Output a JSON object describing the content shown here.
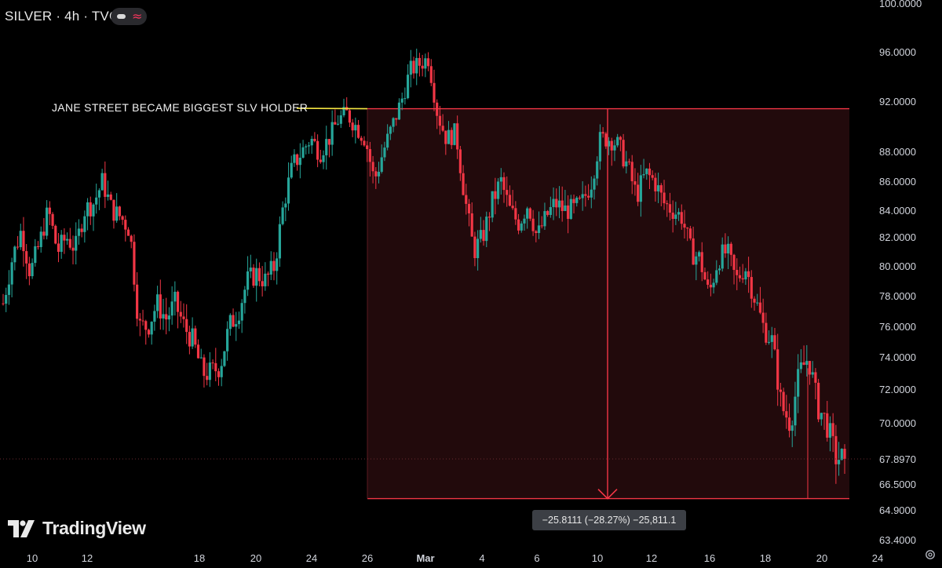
{
  "header": {
    "title": "SILVER · 4h · TVC"
  },
  "annotation": "JANE STREET BECAME BIGGEST SLV HOLDER",
  "logo": {
    "text": "TradingView"
  },
  "measure": {
    "label": "−25.8111 (−28.27%) −25,811.1"
  },
  "colors": {
    "up": "#26a69a",
    "down": "#f23645",
    "zone_fill": "#220a0c",
    "zone_line": "#f23645",
    "annotation_line": "#f5e642",
    "axis_text": "#d1d4dc"
  },
  "chart_data": {
    "type": "candlestick",
    "symbol": "SILVER",
    "interval": "4h",
    "source": "TVC",
    "x_ticks": [
      "10",
      "12",
      "18",
      "20",
      "24",
      "26",
      "Mar",
      "4",
      "6",
      "10",
      "12",
      "16",
      "18",
      "20",
      "24"
    ],
    "y_ticks": [
      "100.0000",
      "96.0000",
      "92.0000",
      "88.0000",
      "86.0000",
      "84.0000",
      "82.0000",
      "80.0000",
      "78.0000",
      "76.0000",
      "74.0000",
      "72.0000",
      "70.0000",
      "67.8970",
      "66.5000",
      "64.9000",
      "63.4000"
    ],
    "current_price": 67.897,
    "measure_zone": {
      "start_price": 91.4,
      "end_price": 65.6,
      "change": -25.8111,
      "change_pct": -28.27
    },
    "ohlc_anchors": [
      [
        77.5,
        80.5,
        82.5,
        79.5,
        81.5,
        84.0,
        81.0,
        82.0,
        81.2,
        84.0,
        84.5,
        86.0,
        84.0,
        83.5,
        82.5
      ],
      [
        76.0,
        76.0,
        77.5,
        76.5,
        77.5,
        76.0,
        75.0,
        73.0,
        73.0,
        73.5,
        76.0,
        77.0,
        79.0,
        79.5,
        79.0
      ],
      [
        80.0,
        84.5,
        87.0,
        88.0,
        89.0,
        88.0,
        89.0,
        90.5,
        91.0,
        90.0,
        89.0,
        86.0,
        88.0,
        90.0,
        92.0
      ],
      [
        94.5,
        95.0,
        95.5,
        91.0,
        89.0,
        89.5,
        85.0,
        81.0,
        82.0,
        84.5,
        86.0,
        84.0,
        83.0,
        84.5,
        82.0
      ],
      [
        83.5,
        84.5,
        84.0,
        84.0,
        84.5,
        86.0,
        89.0,
        89.0,
        88.5,
        87.0,
        85.0,
        86.5,
        86.0,
        84.5,
        84.0
      ],
      [
        83.5,
        81.0,
        80.5,
        78.0,
        80.5,
        81.0,
        79.0,
        80.0,
        78.0,
        76.0,
        75.0,
        71.0,
        70.0,
        73.0,
        74.0
      ],
      [
        71.0,
        70.0,
        68.0,
        67.897
      ]
    ]
  }
}
